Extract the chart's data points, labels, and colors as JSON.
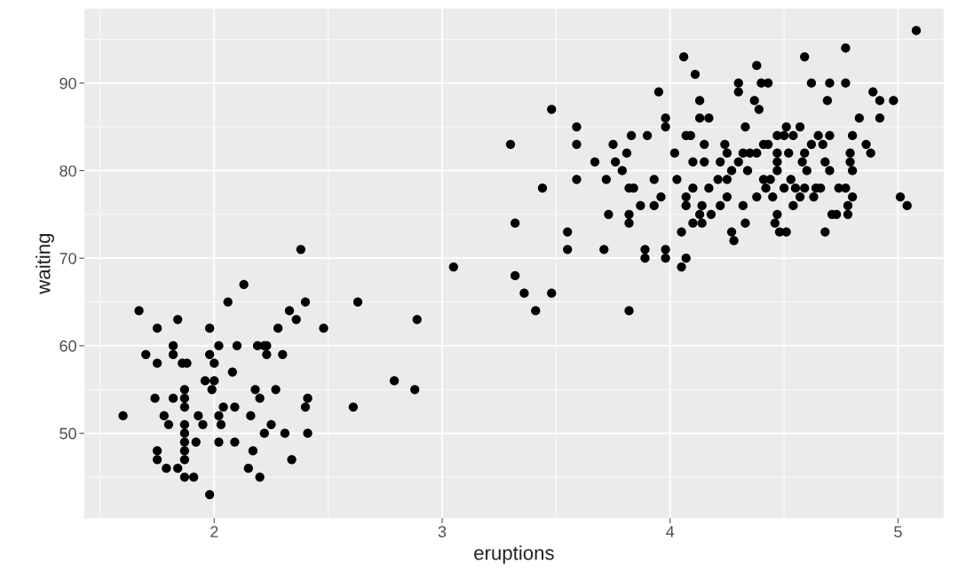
{
  "chart_data": {
    "type": "scatter",
    "xlabel": "eruptions",
    "ylabel": "waiting",
    "xlim": [
      1.43,
      5.2
    ],
    "ylim": [
      40.3,
      98.5
    ],
    "xticks": [
      {
        "value": 1.5,
        "label": null
      },
      2,
      {
        "value": 2.5,
        "label": null
      },
      3,
      {
        "value": 3.5,
        "label": null
      },
      4,
      {
        "value": 4.5,
        "label": null
      },
      5
    ],
    "yticks": [
      {
        "value": 45,
        "label": null
      },
      50,
      {
        "value": 55,
        "label": null
      },
      60,
      {
        "value": 65,
        "label": null
      },
      70,
      {
        "value": 75,
        "label": null
      },
      80,
      {
        "value": 85,
        "label": null
      },
      90,
      {
        "value": 95,
        "label": null
      }
    ],
    "grid": true,
    "marker": "circle",
    "legend": false,
    "series": [
      {
        "color": "#000000",
        "x": [
          1.6,
          1.67,
          1.7,
          1.75,
          1.74,
          1.75,
          1.75,
          1.75,
          1.78,
          1.8,
          1.79,
          1.82,
          1.82,
          1.84,
          1.82,
          1.84,
          1.86,
          1.87,
          1.87,
          1.87,
          1.87,
          1.87,
          1.87,
          1.87,
          1.87,
          1.87,
          1.88,
          1.91,
          1.92,
          1.93,
          1.95,
          1.96,
          1.98,
          1.98,
          1.98,
          1.99,
          2.0,
          2.0,
          2.02,
          2.02,
          2.02,
          2.03,
          2.04,
          2.06,
          2.08,
          2.09,
          2.09,
          2.1,
          2.13,
          2.15,
          2.16,
          2.17,
          2.18,
          2.19,
          2.2,
          2.2,
          2.22,
          2.22,
          2.23,
          2.23,
          2.25,
          2.27,
          2.28,
          2.3,
          2.31,
          2.33,
          2.34,
          2.36,
          2.38,
          2.4,
          2.4,
          2.41,
          2.41,
          2.48,
          2.61,
          2.63,
          2.79,
          2.88,
          2.89,
          3.05,
          3.3,
          3.32,
          3.32,
          3.36,
          3.41,
          3.44,
          3.48,
          3.48,
          3.55,
          3.55,
          3.59,
          3.59,
          3.59,
          3.67,
          3.71,
          3.72,
          3.73,
          3.75,
          3.76,
          3.79,
          3.81,
          3.83,
          3.82,
          3.82,
          3.82,
          3.82,
          3.84,
          3.87,
          3.9,
          3.89,
          3.89,
          3.93,
          3.93,
          3.95,
          3.96,
          3.98,
          3.98,
          3.98,
          3.98,
          4.02,
          4.03,
          4.05,
          4.05,
          4.06,
          4.07,
          4.07,
          4.07,
          4.07,
          4.09,
          4.1,
          4.1,
          4.1,
          4.11,
          4.13,
          4.13,
          4.13,
          4.14,
          4.14,
          4.15,
          4.15,
          4.17,
          4.17,
          4.18,
          4.21,
          4.22,
          4.22,
          4.24,
          4.25,
          4.25,
          4.25,
          4.27,
          4.27,
          4.28,
          4.3,
          4.3,
          4.3,
          4.32,
          4.32,
          4.33,
          4.33,
          4.34,
          4.35,
          4.37,
          4.38,
          4.38,
          4.38,
          4.39,
          4.4,
          4.41,
          4.41,
          4.42,
          4.43,
          4.43,
          4.44,
          4.45,
          4.46,
          4.47,
          4.47,
          4.47,
          4.47,
          4.47,
          4.48,
          4.5,
          4.5,
          4.51,
          4.51,
          4.52,
          4.53,
          4.54,
          4.54,
          4.55,
          4.57,
          4.57,
          4.58,
          4.59,
          4.59,
          4.59,
          4.6,
          4.62,
          4.62,
          4.63,
          4.64,
          4.65,
          4.66,
          4.67,
          4.68,
          4.68,
          4.69,
          4.7,
          4.7,
          4.7,
          4.71,
          4.73,
          4.74,
          4.77,
          4.77,
          4.77,
          4.78,
          4.78,
          4.79,
          4.79,
          4.8,
          4.8,
          4.8,
          4.83,
          4.86,
          4.88,
          4.89,
          4.92,
          4.92,
          4.98,
          5.01,
          5.04,
          5.08
        ],
        "values": [
          52,
          64,
          59,
          62,
          54,
          58,
          48,
          47,
          52,
          51,
          46,
          60,
          59,
          63,
          54,
          46,
          58,
          55,
          54,
          53,
          51,
          50,
          49,
          48,
          47,
          45,
          58,
          45,
          49,
          52,
          51,
          56,
          62,
          59,
          43,
          55,
          56,
          58,
          60,
          52,
          49,
          51,
          53,
          65,
          57,
          53,
          49,
          60,
          67,
          46,
          52,
          48,
          55,
          60,
          54,
          45,
          60,
          50,
          59,
          60,
          51,
          55,
          62,
          59,
          50,
          64,
          47,
          63,
          71,
          65,
          53,
          54,
          50,
          62,
          53,
          65,
          56,
          55,
          63,
          69,
          83,
          74,
          68,
          66,
          64,
          78,
          87,
          66,
          73,
          71,
          85,
          83,
          79,
          81,
          71,
          79,
          75,
          83,
          81,
          80,
          82,
          84,
          78,
          75,
          74,
          64,
          78,
          76,
          84,
          71,
          70,
          79,
          76,
          89,
          77,
          86,
          85,
          71,
          70,
          82,
          79,
          73,
          69,
          93,
          84,
          77,
          76,
          70,
          84,
          78,
          74,
          81,
          91,
          75,
          88,
          86,
          76,
          74,
          83,
          81,
          86,
          78,
          75,
          79,
          81,
          76,
          83,
          82,
          77,
          79,
          80,
          73,
          72,
          81,
          90,
          89,
          76,
          82,
          74,
          85,
          80,
          82,
          88,
          77,
          82,
          92,
          87,
          90,
          83,
          79,
          78,
          90,
          83,
          79,
          77,
          74,
          75,
          81,
          84,
          82,
          80,
          73,
          84,
          78,
          73,
          85,
          82,
          79,
          84,
          76,
          78,
          77,
          85,
          81,
          82,
          78,
          93,
          80,
          90,
          83,
          77,
          78,
          84,
          78,
          83,
          81,
          73,
          88,
          90,
          84,
          80,
          75,
          75,
          78,
          90,
          94,
          78,
          76,
          75,
          81,
          82,
          77,
          80,
          84,
          86,
          83,
          82,
          89,
          88,
          86,
          88,
          77,
          76,
          96
        ]
      }
    ]
  }
}
